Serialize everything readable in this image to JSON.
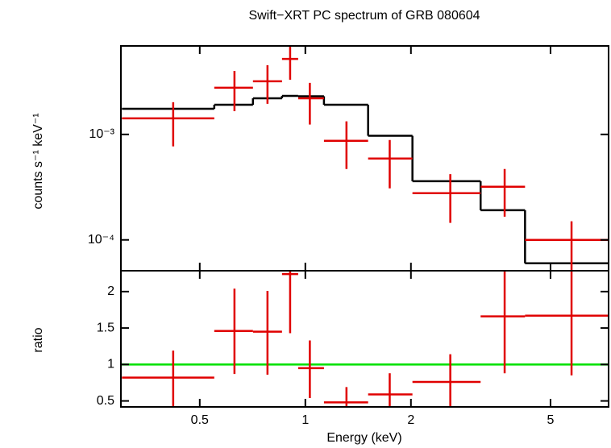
{
  "chart_data": [
    {
      "type": "errorbar",
      "title": "Swift−XRT PC spectrum of GRB 080604",
      "ylabel": "counts s⁻¹ keV⁻¹",
      "xlog": true,
      "ylog": true,
      "xlim": [
        0.298,
        7.32
      ],
      "ylim": [
        5.1e-05,
        0.0069
      ],
      "yticks": [
        {
          "value": 0.0001,
          "label": "10⁻⁴"
        },
        {
          "value": 0.001,
          "label": "10⁻³"
        }
      ],
      "data": {
        "color": "#e00000",
        "x": [
          0.42,
          0.628,
          0.78,
          0.905,
          1.03,
          1.31,
          1.74,
          2.59,
          3.7,
          5.74
        ],
        "x_low": [
          0.3,
          0.55,
          0.709,
          0.858,
          0.954,
          1.13,
          1.51,
          2.02,
          3.16,
          4.23
        ],
        "x_high": [
          0.55,
          0.709,
          0.858,
          0.954,
          1.13,
          1.51,
          2.02,
          3.16,
          4.23,
          7.3
        ],
        "y": [
          0.00142,
          0.00277,
          0.00319,
          0.0052,
          0.0022,
          0.00087,
          0.00059,
          0.000277,
          0.000319,
          0.0001
        ],
        "y_low": [
          0.00077,
          0.00166,
          0.00195,
          0.0033,
          0.00124,
          0.00047,
          0.000308,
          0.000145,
          0.000166,
          4e-05
        ],
        "y_high": [
          0.00202,
          0.004,
          0.00453,
          0.0075,
          0.00308,
          0.00133,
          0.000885,
          0.00042,
          0.00047,
          0.00015
        ]
      },
      "model": {
        "color": "#000000",
        "values": [
          0.00175,
          0.00191,
          0.0022,
          0.00232,
          0.0023,
          0.00191,
          0.00097,
          0.00036,
          0.000191,
          6e-05
        ]
      }
    },
    {
      "type": "errorbar",
      "xlabel": "Energy (keV)",
      "ylabel": "ratio",
      "xlog": true,
      "ylog": false,
      "xlim": [
        0.298,
        7.32
      ],
      "ylim": [
        0.418,
        2.286
      ],
      "xticks": [
        0.5,
        1,
        2,
        5
      ],
      "yticks": [
        0.5,
        1,
        1.5,
        2
      ],
      "data": {
        "color": "#e00000",
        "y": [
          0.82,
          1.46,
          1.45,
          2.24,
          0.95,
          0.48,
          0.59,
          0.76,
          1.66,
          1.67
        ],
        "y_low": [
          0.4,
          0.87,
          0.86,
          1.43,
          0.54,
          0.4,
          0.4,
          0.4,
          0.88,
          0.85
        ],
        "y_high": [
          1.19,
          2.04,
          2.01,
          2.4,
          1.33,
          0.69,
          0.88,
          1.14,
          2.4,
          2.4
        ]
      },
      "reference_line": {
        "value": 1,
        "color": "#00e000"
      }
    }
  ]
}
